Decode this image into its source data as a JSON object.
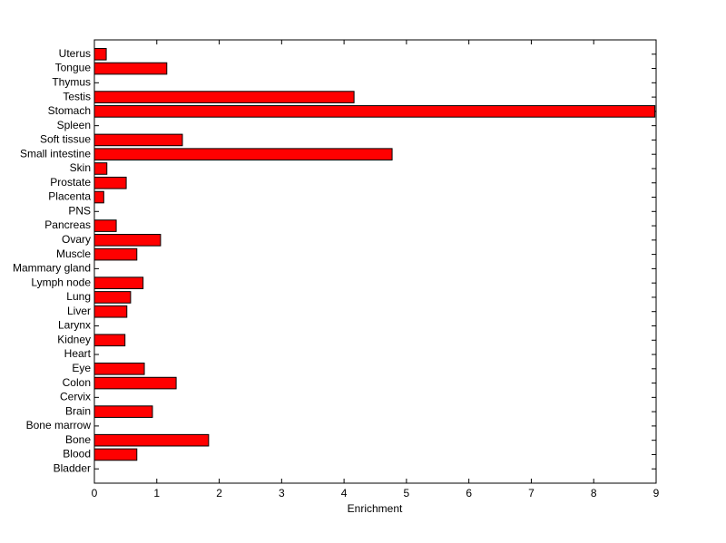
{
  "chart_data": {
    "type": "barh",
    "xlabel": "Enrichment",
    "categories": [
      "Bladder",
      "Blood",
      "Bone",
      "Bone marrow",
      "Brain",
      "Cervix",
      "Colon",
      "Eye",
      "Heart",
      "Kidney",
      "Larynx",
      "Liver",
      "Lung",
      "Lymph node",
      "Mammary gland",
      "Muscle",
      "Ovary",
      "Pancreas",
      "PNS",
      "Placenta",
      "Prostate",
      "Skin",
      "Small intestine",
      "Soft tissue",
      "Spleen",
      "Stomach",
      "Testis",
      "Thymus",
      "Tongue",
      "Uterus"
    ],
    "values": [
      0,
      0.68,
      1.83,
      0,
      0.93,
      0,
      1.31,
      0.8,
      0,
      0.49,
      0,
      0.52,
      0.58,
      0.78,
      0,
      0.68,
      1.06,
      0.35,
      0,
      0.15,
      0.51,
      0.2,
      4.77,
      1.41,
      0,
      8.98,
      4.16,
      0,
      1.16,
      0.19
    ],
    "color": "#ff0000",
    "xlim": [
      0,
      9
    ],
    "xticks": [
      0,
      1,
      2,
      3,
      4,
      5,
      6,
      7,
      8,
      9
    ],
    "grid": false
  }
}
